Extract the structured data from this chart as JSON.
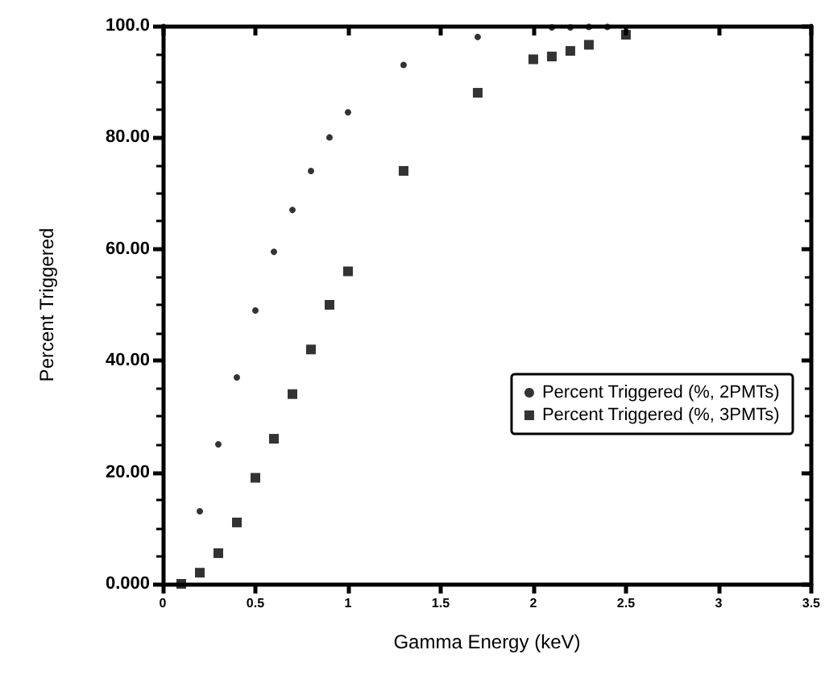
{
  "chart_data": {
    "type": "scatter",
    "xlabel": "Gamma Energy (keV)",
    "ylabel": "Percent Triggered",
    "xlim": [
      0,
      3.5
    ],
    "xticks": [
      0,
      0.5,
      1,
      1.5,
      2,
      2.5,
      3,
      3.5
    ],
    "ylim": [
      0,
      100
    ],
    "yticks": [
      {
        "value": 0,
        "label": "0.000"
      },
      {
        "value": 20,
        "label": "20.00"
      },
      {
        "value": 40,
        "label": "40.00"
      },
      {
        "value": 60,
        "label": "60.00"
      },
      {
        "value": 80,
        "label": "80.00"
      },
      {
        "value": 100,
        "label": "100.0"
      }
    ],
    "grid": false,
    "legend": "right",
    "series": [
      {
        "name": "Percent Triggered (%, 2PMTs)",
        "color": "#000000",
        "marker": "circle",
        "x": [
          0.2,
          0.3,
          0.4,
          0.5,
          0.6,
          0.7,
          0.8,
          0.9,
          1.0,
          1.3,
          1.7,
          2.1,
          2.2,
          2.3,
          2.4
        ],
        "values": [
          13,
          25,
          37,
          49,
          59.5,
          67,
          74,
          80,
          84.5,
          93,
          98,
          99.7,
          99.7,
          99.8,
          99.8
        ]
      },
      {
        "name": "Percent Triggered (%, 3PMTs)",
        "color": "#000000",
        "marker": "square",
        "x": [
          0.1,
          0.2,
          0.3,
          0.4,
          0.5,
          0.6,
          0.7,
          0.8,
          0.9,
          1.0,
          1.3,
          1.7,
          2.0,
          2.1,
          2.2,
          2.3,
          2.5
        ],
        "values": [
          0,
          2,
          5.5,
          11,
          19,
          26,
          34,
          42,
          50,
          56,
          74,
          88,
          94,
          94.5,
          95.5,
          96.6,
          98.4
        ]
      }
    ]
  }
}
